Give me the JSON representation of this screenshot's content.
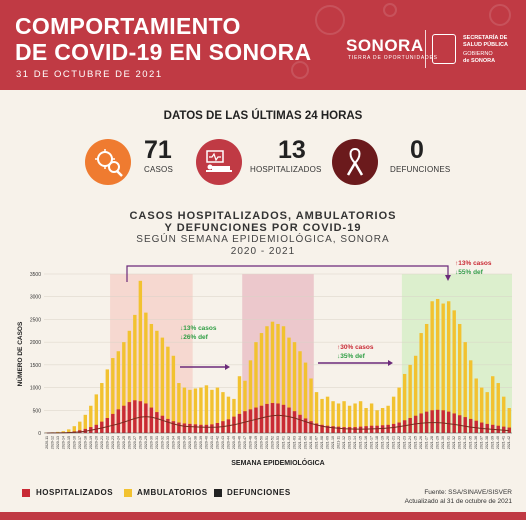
{
  "header": {
    "title_line1": "COMPORTAMIENTO",
    "title_line2": "DE COVID-19 EN SONORA",
    "date": "31 DE OCTUBRE DE 2021",
    "logo_text": "SONORA",
    "logo_sub": "TIERRA DE OPORTUNIDADES",
    "gov_line1": "SECRETARÍA DE",
    "gov_line2": "SALUD PÚBLICA",
    "gov_line3": "GOBIERNO",
    "gov_line4": "de SONORA"
  },
  "stats": {
    "title": "DATOS DE LAS ÚLTIMAS 24 HORAS",
    "items": [
      {
        "value": "71",
        "label": "CASOS",
        "icon": "virus-magnifier-icon",
        "color": "#ef7b30"
      },
      {
        "value": "13",
        "label": "HOSPITALIZADOS",
        "icon": "hospital-bed-icon",
        "color": "#c03a44"
      },
      {
        "value": "0",
        "label": "DEFUNCIONES",
        "icon": "ribbon-icon",
        "color": "#6b1a1c"
      }
    ]
  },
  "colors": {
    "accent": "#c03a44",
    "hospitalizados": "#c92a35",
    "ambulatorios": "#f2c230",
    "defunciones": "#7a2a20",
    "green": "#2f9e44"
  },
  "chart_data": {
    "type": "bar",
    "title_line1": "CASOS HOSPITALIZADOS, AMBULATORIOS",
    "title_line2": "Y DEFUNCIONES POR COVID-19",
    "subtitle_line1": "SEGÚN SEMANA EPIDEMIOLÓGICA, SONORA",
    "subtitle_line2": "2020 - 2021",
    "xlabel": "SEMANA EPIDEMIOLÓGICA",
    "ylabel": "NÚMERO DE CASOS",
    "ylim": [
      0,
      3500
    ],
    "yticks": [
      0,
      500,
      1000,
      1500,
      2000,
      2500,
      3000,
      3500
    ],
    "categories": [
      "2020-11",
      "2020-12",
      "2020-13",
      "2020-14",
      "2020-15",
      "2020-16",
      "2020-17",
      "2020-18",
      "2020-19",
      "2020-20",
      "2020-21",
      "2020-22",
      "2020-23",
      "2020-24",
      "2020-25",
      "2020-26",
      "2020-27",
      "2020-28",
      "2020-29",
      "2020-30",
      "2020-31",
      "2020-32",
      "2020-33",
      "2020-34",
      "2020-35",
      "2020-36",
      "2020-37",
      "2020-38",
      "2020-39",
      "2020-40",
      "2020-41",
      "2020-42",
      "2020-43",
      "2020-44",
      "2020-45",
      "2020-46",
      "2020-47",
      "2020-48",
      "2020-49",
      "2020-50",
      "2020-51",
      "2020-52",
      "2020-53",
      "2021-01",
      "2021-02",
      "2021-03",
      "2021-04",
      "2021-05",
      "2021-06",
      "2021-07",
      "2021-08",
      "2021-09",
      "2021-10",
      "2021-11",
      "2021-12",
      "2021-13",
      "2021-14",
      "2021-15",
      "2021-16",
      "2021-17",
      "2021-18",
      "2021-19",
      "2021-20",
      "2021-21",
      "2021-22",
      "2021-23",
      "2021-24",
      "2021-25",
      "2021-26",
      "2021-27",
      "2021-28",
      "2021-29",
      "2021-30",
      "2021-31",
      "2021-32",
      "2021-33",
      "2021-34",
      "2021-35",
      "2021-36",
      "2021-37",
      "2021-38",
      "2021-39",
      "2021-40",
      "2021-41",
      "2021-42"
    ],
    "series": [
      {
        "name": "HOSPITALIZADOS",
        "color": "#c92a35",
        "values": [
          3,
          5,
          8,
          12,
          20,
          35,
          60,
          90,
          130,
          180,
          250,
          330,
          420,
          520,
          600,
          680,
          720,
          700,
          650,
          560,
          460,
          380,
          310,
          260,
          230,
          210,
          200,
          190,
          180,
          180,
          190,
          220,
          260,
          300,
          360,
          420,
          480,
          520,
          560,
          600,
          640,
          660,
          650,
          620,
          560,
          480,
          400,
          320,
          260,
          210,
          180,
          160,
          150,
          140,
          130,
          130,
          130,
          140,
          150,
          160,
          160,
          170,
          180,
          200,
          230,
          280,
          330,
          380,
          430,
          470,
          500,
          510,
          500,
          470,
          430,
          390,
          350,
          310,
          270,
          230,
          200,
          180,
          160,
          140,
          120
        ]
      },
      {
        "name": "AMBULATORIOS",
        "color": "#f2c230",
        "values": [
          10,
          15,
          25,
          40,
          80,
          150,
          250,
          400,
          600,
          850,
          1100,
          1400,
          1650,
          1800,
          2000,
          2250,
          2600,
          3350,
          2650,
          2400,
          2250,
          2100,
          1900,
          1700,
          1100,
          1000,
          950,
          980,
          1000,
          1050,
          950,
          1000,
          900,
          800,
          750,
          1250,
          1150,
          1600,
          2000,
          2200,
          2350,
          2450,
          2400,
          2350,
          2100,
          2000,
          1800,
          1550,
          1200,
          900,
          750,
          800,
          700,
          650,
          700,
          600,
          650,
          700,
          550,
          650,
          500,
          550,
          600,
          800,
          1000,
          1300,
          1500,
          1700,
          2200,
          2400,
          2900,
          2950,
          2850,
          2900,
          2700,
          2400,
          2000,
          1600,
          1200,
          1000,
          900,
          1250,
          1100,
          800,
          550
        ]
      },
      {
        "name": "DEFUNCIONES",
        "color": "#7a2a20",
        "values": [
          1,
          2,
          3,
          5,
          8,
          15,
          25,
          40,
          60,
          85,
          110,
          140,
          170,
          200,
          240,
          280,
          320,
          350,
          360,
          350,
          320,
          280,
          240,
          200,
          170,
          150,
          140,
          135,
          130,
          125,
          125,
          130,
          140,
          160,
          180,
          210,
          240,
          270,
          300,
          330,
          360,
          380,
          390,
          380,
          360,
          330,
          290,
          250,
          210,
          180,
          150,
          130,
          115,
          105,
          95,
          90,
          85,
          85,
          85,
          90,
          95,
          100,
          110,
          120,
          140,
          160,
          180,
          200,
          215,
          225,
          230,
          230,
          220,
          205,
          190,
          170,
          150,
          130,
          115,
          100,
          90,
          80,
          70,
          60,
          50
        ]
      }
    ],
    "highlight_ranges": [
      {
        "start": "2020-23",
        "end": "2020-37",
        "color": "#f6d8d0"
      },
      {
        "start": "2020-47",
        "end": "2021-06",
        "color": "#ecc8cc"
      },
      {
        "start": "2021-23",
        "end": "2021-42",
        "color": "#dcefcd"
      }
    ],
    "annotations": {
      "ann1_line1": "13% casos",
      "ann1_line2": "26% def",
      "ann2_line1": "30% casos",
      "ann2_line2": "35% def",
      "ann3_line1": "13% casos",
      "ann3_line2": "55% def"
    },
    "legend": [
      "HOSPITALIZADOS",
      "AMBULATORIOS",
      "DEFUNCIONES"
    ]
  },
  "footer": {
    "source": "Fuente: SSA/SINAVE/SISVER",
    "updated": "Actualizado al 31 de octubre de 2021"
  }
}
